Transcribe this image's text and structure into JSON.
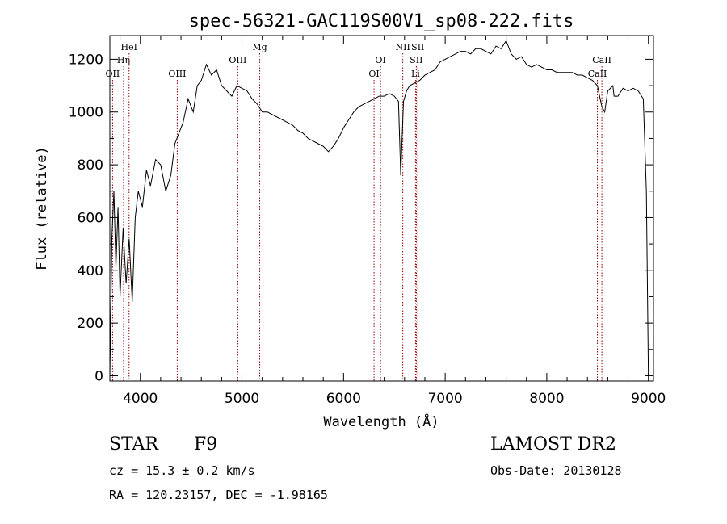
{
  "chart_data": {
    "type": "line",
    "title": "spec-56321-GAC119S00V1_sp08-222.fits",
    "xlabel": "Wavelength (Å)",
    "ylabel": "Flux (relative)",
    "xlim": [
      3700,
      9050
    ],
    "ylim": [
      -20,
      1290
    ],
    "xticks": [
      4000,
      5000,
      6000,
      7000,
      8000,
      9000
    ],
    "yticks": [
      0,
      200,
      400,
      600,
      800,
      1000,
      1200
    ],
    "grid": false,
    "line_color": "#000000",
    "marker_color": "#8b0000",
    "series": [
      {
        "x": [
          3700,
          3705,
          3720,
          3740,
          3760,
          3780,
          3800,
          3830,
          3860,
          3890,
          3920,
          3950,
          3980,
          4020,
          4060,
          4100,
          4150,
          4200,
          4250,
          4300,
          4340,
          4380,
          4420,
          4470,
          4520,
          4560,
          4600,
          4650,
          4700,
          4750,
          4800,
          4850,
          4900,
          4950,
          5000,
          5050,
          5100,
          5150,
          5200,
          5250,
          5300,
          5350,
          5400,
          5450,
          5500,
          5550,
          5600,
          5650,
          5700,
          5750,
          5800,
          5850,
          5900,
          5950,
          6000,
          6050,
          6100,
          6150,
          6200,
          6250,
          6300,
          6350,
          6400,
          6450,
          6500,
          6540,
          6563,
          6590,
          6620,
          6650,
          6700,
          6750,
          6800,
          6850,
          6900,
          6950,
          7000,
          7050,
          7100,
          7150,
          7200,
          7250,
          7300,
          7350,
          7400,
          7450,
          7500,
          7550,
          7600,
          7650,
          7700,
          7750,
          7800,
          7850,
          7900,
          7950,
          8000,
          8050,
          8100,
          8150,
          8200,
          8250,
          8300,
          8350,
          8400,
          8450,
          8498,
          8520,
          8542,
          8570,
          8600,
          8650,
          8662,
          8700,
          8750,
          8800,
          8850,
          8900,
          8950,
          8980,
          9000
        ],
        "y": [
          0,
          120,
          520,
          700,
          410,
          640,
          300,
          560,
          350,
          520,
          280,
          600,
          700,
          640,
          780,
          720,
          820,
          800,
          700,
          760,
          880,
          920,
          960,
          1050,
          1000,
          1100,
          1120,
          1180,
          1140,
          1160,
          1100,
          1080,
          1060,
          1100,
          1090,
          1080,
          1050,
          1030,
          1000,
          1000,
          990,
          980,
          970,
          960,
          950,
          930,
          920,
          900,
          890,
          880,
          870,
          850,
          870,
          900,
          940,
          970,
          1000,
          1020,
          1030,
          1040,
          1050,
          1060,
          1060,
          1070,
          1060,
          1040,
          760,
          1040,
          1080,
          1100,
          1110,
          1120,
          1140,
          1150,
          1160,
          1190,
          1200,
          1210,
          1220,
          1230,
          1230,
          1220,
          1240,
          1240,
          1230,
          1220,
          1250,
          1240,
          1270,
          1220,
          1200,
          1210,
          1180,
          1170,
          1180,
          1170,
          1160,
          1160,
          1150,
          1150,
          1150,
          1150,
          1140,
          1140,
          1130,
          1120,
          1100,
          1060,
          1020,
          1000,
          1080,
          1100,
          1060,
          1060,
          1090,
          1080,
          1090,
          1080,
          1050,
          700,
          0
        ]
      }
    ],
    "lines": [
      {
        "label": "OII",
        "wave": 3727,
        "row": 3
      },
      {
        "label": "Hη",
        "wave": 3835,
        "row": 2
      },
      {
        "label": "HeI",
        "wave": 3889,
        "row": 1
      },
      {
        "label": "OIII",
        "wave": 4363,
        "row": 3
      },
      {
        "label": "OIII",
        "wave": 4959,
        "row": 2
      },
      {
        "label": "Mg",
        "wave": 5175,
        "row": 1
      },
      {
        "label": "OI",
        "wave": 6300,
        "row": 3
      },
      {
        "label": "OI",
        "wave": 6364,
        "row": 2
      },
      {
        "label": "NII",
        "wave": 6583,
        "row": 1
      },
      {
        "label": "Li",
        "wave": 6708,
        "row": 3
      },
      {
        "label": "SII",
        "wave": 6716,
        "row": 2
      },
      {
        "label": "SII",
        "wave": 6731,
        "row": 1
      },
      {
        "label": "CaII",
        "wave": 8498,
        "row": 3
      },
      {
        "label": "CaII",
        "wave": 8542,
        "row": 2
      }
    ]
  },
  "info": {
    "object_class": "STAR",
    "subclass": "F9",
    "survey": "LAMOST DR2",
    "redshift_text": "cz = 15.3 ± 0.2 km/s",
    "coords_text": "RA = 120.23157, DEC =  -1.98165",
    "obs_date_text": "Obs-Date: 20130128"
  }
}
